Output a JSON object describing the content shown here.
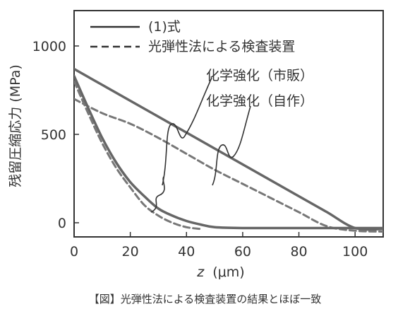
{
  "caption": "【図】光弾性法による検査装置の結果とほぼ一致",
  "chart_data": {
    "type": "line",
    "xlabel_var": "z",
    "xlabel_unit": "(μm)",
    "ylabel": "残留圧縮応力 (MPa)",
    "xlim": [
      0,
      110
    ],
    "ylim": [
      -80,
      1200
    ],
    "xticks": [
      0,
      20,
      40,
      60,
      80,
      100
    ],
    "yticks": [
      0,
      500,
      1000
    ],
    "grid": false,
    "legend_position": "top",
    "legend": [
      {
        "label": "(1)式",
        "style": "solid"
      },
      {
        "label": "光弾性法による検査装置",
        "style": "dashed"
      }
    ],
    "annotations": [
      {
        "text": "化学強化（市販）"
      },
      {
        "text": "化学強化（自作）"
      }
    ],
    "series": [
      {
        "style": "solid",
        "group": "市販",
        "x": [
          0,
          10,
          20,
          30,
          40,
          50,
          60,
          70,
          80,
          90,
          100,
          110
        ],
        "y": [
          870,
          780,
          690,
          600,
          510,
          420,
          330,
          240,
          150,
          60,
          -30,
          -35
        ]
      },
      {
        "style": "dashed",
        "group": "市販",
        "x": [
          0,
          10,
          20,
          30,
          40,
          50,
          60,
          70,
          80,
          90,
          100,
          110
        ],
        "y": [
          700,
          620,
          560,
          480,
          390,
          300,
          220,
          140,
          60,
          -20,
          -45,
          -50
        ]
      },
      {
        "style": "solid",
        "group": "自作",
        "x": [
          0,
          5,
          10,
          15,
          20,
          25,
          30,
          35,
          40,
          45,
          50,
          60,
          80,
          100,
          110
        ],
        "y": [
          830,
          650,
          480,
          340,
          230,
          150,
          80,
          40,
          10,
          -10,
          -25,
          -30,
          -30,
          -30,
          -30
        ]
      },
      {
        "style": "dashed",
        "group": "自作",
        "x": [
          0,
          5,
          10,
          15,
          20,
          25,
          30,
          35,
          40,
          45
        ],
        "y": [
          800,
          620,
          450,
          310,
          200,
          100,
          40,
          0,
          -25,
          -35
        ]
      }
    ],
    "colors": {
      "solid": "#666666",
      "dashed": "#777777",
      "frame": "#333333",
      "text": "#333333"
    }
  }
}
